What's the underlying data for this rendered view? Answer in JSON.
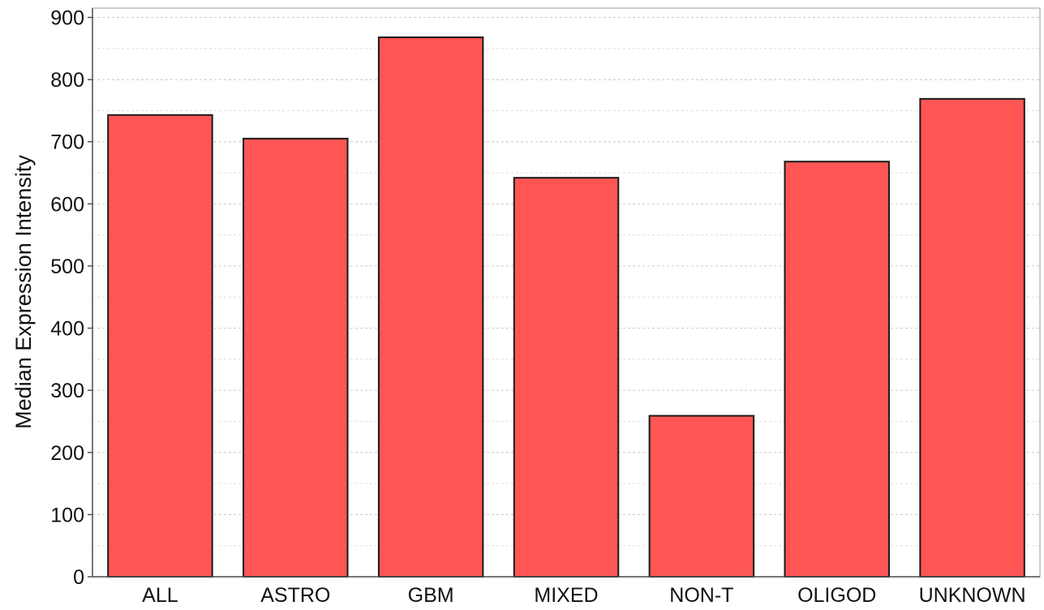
{
  "chart_data": {
    "type": "bar",
    "title": "",
    "xlabel": "",
    "ylabel": "Median Expression Intensity",
    "categories": [
      "ALL",
      "ASTRO",
      "GBM",
      "MIXED",
      "NON-T",
      "OLIGOD",
      "UNKNOWN"
    ],
    "values": [
      743,
      705,
      868,
      642,
      259,
      668,
      769
    ],
    "ylim": [
      0,
      915
    ],
    "yticks": [
      0,
      100,
      200,
      300,
      400,
      500,
      600,
      700,
      800,
      900
    ],
    "grid": true,
    "bar_color": "#ff5555",
    "bar_edge_color": "#1a1a1a"
  }
}
